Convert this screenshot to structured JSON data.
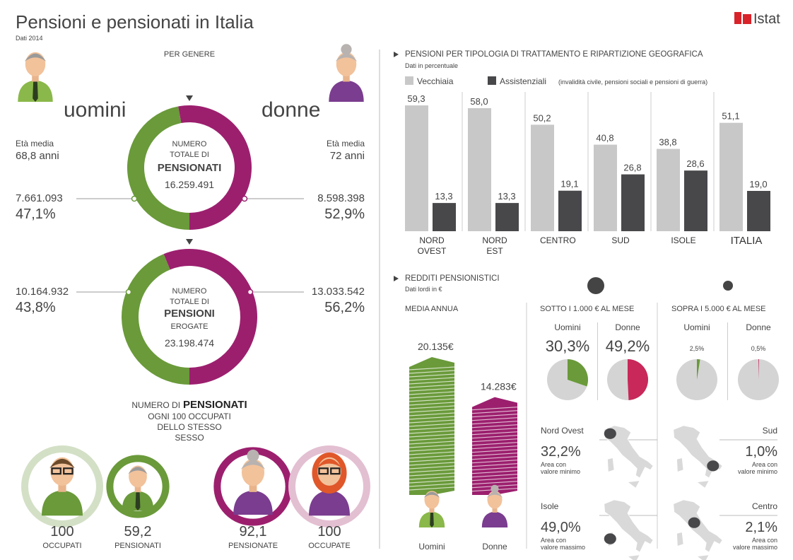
{
  "header": {
    "title": "Pensioni e pensionati in Italia",
    "subtitle": "Dati 2014",
    "logo": "Istat"
  },
  "gender": {
    "heading": "PER GENERE",
    "men": "uomini",
    "women": "donne",
    "men_age": [
      "Età media",
      "68,8 anni"
    ],
    "women_age": [
      "Età media",
      "72 anni"
    ]
  },
  "chart_data": [
    {
      "type": "donut",
      "center": [
        "NUMERO",
        "TOTALE DI",
        "PENSIONATI"
      ],
      "total": "16.259.491",
      "counts": [
        "7.661.093",
        "8.598.398"
      ],
      "values": [
        47.1,
        52.9
      ],
      "value_labels": [
        "47,1%",
        "52,9%"
      ],
      "colors": [
        "#6a9a3a",
        "#9c1f6e"
      ]
    },
    {
      "type": "donut",
      "center": [
        "NUMERO",
        "TOTALE DI",
        "PENSIONI",
        "EROGATE"
      ],
      "total": "23.198.474",
      "counts": [
        "10.164.932",
        "13.033.542"
      ],
      "values": [
        43.8,
        56.2
      ],
      "value_labels": [
        "43,8%",
        "56,2%"
      ],
      "colors": [
        "#6a9a3a",
        "#9c1f6e"
      ]
    },
    {
      "type": "bar",
      "title": "PENSIONI PER TIPOLOGIA DI TRATTAMENTO E RIPARTIZIONE GEOGRAFICA",
      "subtitle": "Dati in percentuale",
      "note": "(invalidità civile, pensioni sociali e pensioni di guerra)",
      "categories": [
        "NORD OVEST",
        "NORD EST",
        "CENTRO",
        "SUD",
        "ISOLE",
        "ITALIA"
      ],
      "series": [
        {
          "name": "Vecchiaia",
          "color": "#c8c8c8",
          "values": [
            59.3,
            58.0,
            50.2,
            40.8,
            38.8,
            51.1
          ],
          "value_labels": [
            "59,3",
            "58,0",
            "50,2",
            "40,8",
            "38,8",
            "51,1"
          ]
        },
        {
          "name": "Assistenziali",
          "color": "#48484b",
          "values": [
            13.3,
            13.3,
            19.1,
            26.8,
            28.6,
            19.0
          ],
          "value_labels": [
            "13,3",
            "13,3",
            "19,1",
            "26,8",
            "28,6",
            "19,0"
          ]
        }
      ]
    },
    {
      "type": "pictogram-bar",
      "title": "REDDITI PENSIONISTICI",
      "subtitle": "Dati lordi in €",
      "heading": "MEDIA ANNUA",
      "categories": [
        "Uomini",
        "Donne"
      ],
      "values": [
        20135,
        14283
      ],
      "value_labels": [
        "20.135€",
        "14.283€"
      ],
      "colors": [
        "#6a9a3a",
        "#9c1f6e"
      ]
    },
    {
      "type": "pie",
      "title": "SOTTO I 1.000 € AL MESE",
      "categories": [
        "Uomini",
        "Donne"
      ],
      "values": [
        30.3,
        49.2
      ],
      "value_labels": [
        "30,3%",
        "49,2%"
      ],
      "colors": [
        "#6a9a3a",
        "#c8285a"
      ]
    },
    {
      "type": "pie",
      "title": "SOPRA I 5.000 € AL MESE",
      "categories": [
        "Uomini",
        "Donne"
      ],
      "values": [
        2.5,
        0.5
      ],
      "value_labels": [
        "2,5%",
        "0,5%"
      ],
      "colors": [
        "#6a9a3a",
        "#c8285a"
      ]
    },
    {
      "type": "circles",
      "title": [
        "NUMERO DI",
        "PENSIONATI",
        "OGNI 100 OCCUPATI",
        "DELLO STESSO",
        "SESSO"
      ],
      "categories": [
        "OCCUPATI",
        "PENSIONATI",
        "PENSIONATE",
        "OCCUPATE"
      ],
      "values": [
        100,
        59.2,
        92.1,
        100
      ],
      "value_labels": [
        "100",
        "59,2",
        "92,1",
        "100"
      ],
      "colors": [
        "#d3e0c6",
        "#6a9a3a",
        "#9c1f6e",
        "#e3bfd2"
      ]
    }
  ],
  "regions": [
    {
      "name": "Nord Ovest",
      "value": "32,2%",
      "note": [
        "Area con",
        "valore minimo"
      ]
    },
    {
      "name": "Sud",
      "value": "1,0%",
      "note": [
        "Area con",
        "valore minimo"
      ]
    },
    {
      "name": "Isole",
      "value": "49,0%",
      "note": [
        "Area con",
        "valore massimo"
      ]
    },
    {
      "name": "Centro",
      "value": "2,1%",
      "note": [
        "Area con",
        "valore massimo"
      ]
    }
  ]
}
